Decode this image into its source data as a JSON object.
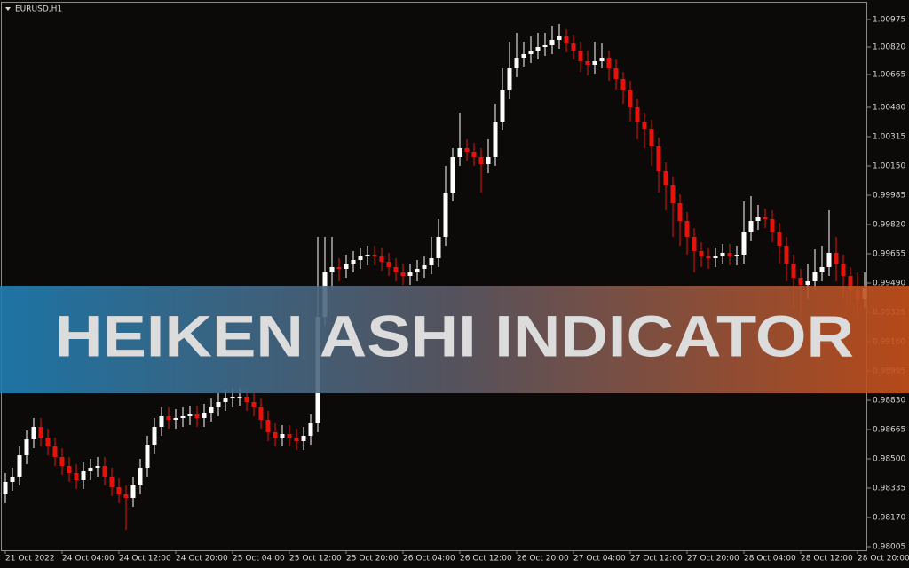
{
  "chart_data": {
    "type": "candlestick",
    "title": "EURUSD,H1",
    "banner": "HEIKEN ASHI INDICATOR",
    "x": [
      "21 Oct 2022",
      null,
      null,
      null,
      null,
      null,
      null,
      null,
      "24 Oct 04:00",
      null,
      null,
      null,
      null,
      null,
      null,
      null,
      "24 Oct 12:00",
      null,
      null,
      null,
      null,
      null,
      null,
      null,
      "24 Oct 20:00",
      null,
      null,
      null,
      null,
      null,
      null,
      null,
      "25 Oct 04:00",
      null,
      null,
      null,
      null,
      null,
      null,
      null,
      "25 Oct 12:00",
      null,
      null,
      null,
      null,
      null,
      null,
      null,
      "25 Oct 20:00",
      null,
      null,
      null,
      null,
      null,
      null,
      null,
      "26 Oct 04:00",
      null,
      null,
      null,
      null,
      null,
      null,
      null,
      "26 Oct 12:00",
      null,
      null,
      null,
      null,
      null,
      null,
      null,
      "26 Oct 20:00",
      null,
      null,
      null,
      null,
      null,
      null,
      null,
      "27 Oct 04:00",
      null,
      null,
      null,
      null,
      null,
      null,
      null,
      "27 Oct 12:00",
      null,
      null,
      null,
      null,
      null,
      null,
      null,
      "27 Oct 20:00",
      null,
      null,
      null,
      null,
      null,
      null,
      null,
      "28 Oct 04:00",
      null,
      null,
      null,
      null,
      null,
      null,
      null,
      "28 Oct 12:00",
      null,
      null,
      null,
      null,
      null,
      null,
      null,
      "28 Oct 20:00",
      null
    ],
    "open": [
      0.983,
      0.9837,
      0.984,
      0.9852,
      0.9861,
      0.9868,
      0.9862,
      0.9857,
      0.9851,
      0.9846,
      0.9842,
      0.9838,
      0.9843,
      0.9845,
      0.9846,
      0.984,
      0.9834,
      0.983,
      0.9828,
      0.9835,
      0.9845,
      0.9858,
      0.9868,
      0.9874,
      0.9872,
      0.9873,
      0.9874,
      0.9875,
      0.9873,
      0.9876,
      0.9879,
      0.9882,
      0.9884,
      0.9885,
      0.9885,
      0.9882,
      0.9879,
      0.9872,
      0.9865,
      0.9862,
      0.9864,
      0.9862,
      0.986,
      0.9863,
      0.987,
      0.993,
      0.9955,
      0.9958,
      0.9957,
      0.996,
      0.9962,
      0.9964,
      0.9965,
      0.9964,
      0.9961,
      0.9958,
      0.9955,
      0.9953,
      0.9955,
      0.9957,
      0.9959,
      0.9963,
      0.9975,
      1.0,
      1.002,
      1.0025,
      1.0023,
      1.002,
      1.0016,
      1.002,
      1.004,
      1.0058,
      1.007,
      1.0076,
      1.0078,
      1.008,
      1.0082,
      1.0083,
      1.0086,
      1.0088,
      1.0084,
      1.008,
      1.0074,
      1.0072,
      1.0074,
      1.0076,
      1.007,
      1.0064,
      1.0058,
      1.0048,
      1.004,
      1.0036,
      1.0026,
      1.0012,
      1.0004,
      0.9994,
      0.9984,
      0.9975,
      0.9967,
      0.9964,
      0.9963,
      0.9964,
      0.9966,
      0.9964,
      0.9965,
      0.9978,
      0.9984,
      0.9986,
      0.9985,
      0.9978,
      0.997,
      0.996,
      0.9952,
      0.9948,
      0.995,
      0.9955,
      0.9958,
      0.9966,
      0.996,
      0.9953,
      0.9945,
      0.994
    ],
    "high": [
      0.9842,
      0.9845,
      0.9857,
      0.9866,
      0.9873,
      0.9873,
      0.9867,
      0.9862,
      0.9856,
      0.9851,
      0.9847,
      0.9848,
      0.985,
      0.9851,
      0.9851,
      0.9845,
      0.9839,
      0.9835,
      0.984,
      0.985,
      0.9863,
      0.9873,
      0.9879,
      0.9879,
      0.9878,
      0.9879,
      0.988,
      0.988,
      0.9881,
      0.9884,
      0.9887,
      0.9889,
      0.989,
      0.989,
      0.989,
      0.9887,
      0.9884,
      0.9877,
      0.987,
      0.9869,
      0.9869,
      0.9867,
      0.9868,
      0.9875,
      0.9975,
      0.9975,
      0.9975,
      0.9963,
      0.9965,
      0.9967,
      0.9969,
      0.997,
      0.997,
      0.9969,
      0.9966,
      0.9963,
      0.996,
      0.996,
      0.9962,
      0.9964,
      0.9975,
      0.9985,
      1.0015,
      1.0025,
      1.0045,
      1.003,
      1.0028,
      1.0025,
      1.003,
      1.005,
      1.007,
      1.0085,
      1.009,
      1.0085,
      1.0088,
      1.009,
      1.009,
      1.0094,
      1.0095,
      1.0092,
      1.0089,
      1.0085,
      1.008,
      1.0085,
      1.0084,
      1.008,
      1.0075,
      1.0068,
      1.0063,
      1.0053,
      1.0045,
      1.0041,
      1.0031,
      1.0017,
      1.0009,
      0.9999,
      0.9989,
      0.998,
      0.9972,
      0.9969,
      0.9969,
      0.9971,
      0.9971,
      0.997,
      0.9995,
      0.9998,
      0.9993,
      0.9991,
      0.999,
      0.9983,
      0.9975,
      0.9965,
      0.9957,
      0.996,
      0.9968,
      0.997,
      0.999,
      0.9975,
      0.9965,
      0.9958,
      0.9955,
      0.9955
    ],
    "low": [
      0.9825,
      0.9832,
      0.9835,
      0.9847,
      0.9856,
      0.9857,
      0.9852,
      0.9846,
      0.9841,
      0.9837,
      0.9833,
      0.9833,
      0.9838,
      0.984,
      0.9835,
      0.9829,
      0.9825,
      0.981,
      0.9823,
      0.983,
      0.984,
      0.9853,
      0.9863,
      0.9867,
      0.9867,
      0.9868,
      0.9869,
      0.9868,
      0.9868,
      0.9871,
      0.9874,
      0.9877,
      0.9879,
      0.988,
      0.9877,
      0.9874,
      0.9867,
      0.986,
      0.9857,
      0.9857,
      0.9857,
      0.9855,
      0.9855,
      0.9858,
      0.9865,
      0.9925,
      0.9945,
      0.995,
      0.9952,
      0.9955,
      0.9957,
      0.9959,
      0.9959,
      0.9956,
      0.9953,
      0.995,
      0.9948,
      0.9948,
      0.995,
      0.9952,
      0.9954,
      0.9958,
      0.997,
      0.9995,
      1.0015,
      1.0018,
      1.0015,
      1.0,
      1.0011,
      1.0015,
      1.0035,
      1.0053,
      1.0065,
      1.0071,
      1.0073,
      1.0075,
      1.0077,
      1.0078,
      1.0081,
      1.0079,
      1.0075,
      1.0068,
      1.0066,
      1.0067,
      1.007,
      1.0063,
      1.0058,
      1.005,
      1.004,
      1.003,
      1.0025,
      1.0015,
      1.0,
      0.999,
      0.9975,
      0.997,
      0.9965,
      0.9955,
      0.9958,
      0.9957,
      0.9958,
      0.996,
      0.9959,
      0.9959,
      0.996,
      0.9973,
      0.9979,
      0.998,
      0.9972,
      0.996,
      0.995,
      0.9935,
      0.993,
      0.994,
      0.9945,
      0.995,
      0.9953,
      0.995,
      0.994,
      0.9935,
      0.993,
      0.9935
    ],
    "close": [
      0.9837,
      0.984,
      0.9852,
      0.9861,
      0.9868,
      0.9862,
      0.9857,
      0.9851,
      0.9846,
      0.9842,
      0.9838,
      0.9843,
      0.9845,
      0.9846,
      0.984,
      0.9834,
      0.983,
      0.9828,
      0.9835,
      0.9845,
      0.9858,
      0.9868,
      0.9874,
      0.9872,
      0.9873,
      0.9874,
      0.9875,
      0.9873,
      0.9876,
      0.9879,
      0.9882,
      0.9884,
      0.9885,
      0.9885,
      0.9882,
      0.9879,
      0.9872,
      0.9865,
      0.9862,
      0.9864,
      0.9862,
      0.986,
      0.9863,
      0.987,
      0.993,
      0.9955,
      0.9958,
      0.9957,
      0.996,
      0.9962,
      0.9964,
      0.9965,
      0.9964,
      0.9961,
      0.9958,
      0.9955,
      0.9953,
      0.9955,
      0.9957,
      0.9959,
      0.9963,
      0.9975,
      1.0,
      1.002,
      1.0025,
      1.0023,
      1.002,
      1.0016,
      1.002,
      1.004,
      1.0058,
      1.007,
      1.0076,
      1.0078,
      1.008,
      1.0082,
      1.0083,
      1.0086,
      1.0088,
      1.0084,
      1.008,
      1.0074,
      1.0072,
      1.0074,
      1.0076,
      1.007,
      1.0064,
      1.0058,
      1.0048,
      1.004,
      1.0036,
      1.0026,
      1.0012,
      1.0004,
      0.9994,
      0.9984,
      0.9975,
      0.9967,
      0.9964,
      0.9963,
      0.9964,
      0.9966,
      0.9964,
      0.9965,
      0.9978,
      0.9984,
      0.9986,
      0.9985,
      0.9978,
      0.997,
      0.996,
      0.9952,
      0.9948,
      0.995,
      0.9955,
      0.9958,
      0.9966,
      0.996,
      0.9953,
      0.9945,
      0.994,
      0.9946
    ],
    "up_color": "#ffffff",
    "down_color": "#e8120c",
    "ylim": [
      0.97985,
      1.0107
    ],
    "yticks": [
      {
        "value": 1.00975,
        "label": "1.00975"
      },
      {
        "value": 1.0082,
        "label": "1.00820"
      },
      {
        "value": 1.00665,
        "label": "1.00665"
      },
      {
        "value": 1.0048,
        "label": "1.00480"
      },
      {
        "value": 1.00315,
        "label": "1.00315"
      },
      {
        "value": 1.0015,
        "label": "1.00150"
      },
      {
        "value": 0.99985,
        "label": "0.99985"
      },
      {
        "value": 0.9982,
        "label": "0.99820"
      },
      {
        "value": 0.99655,
        "label": "0.99655"
      },
      {
        "value": 0.9949,
        "label": "0.99490"
      },
      {
        "value": 0.99325,
        "label": "0.99325"
      },
      {
        "value": 0.9916,
        "label": "0.99160"
      },
      {
        "value": 0.98995,
        "label": "0.98995"
      },
      {
        "value": 0.9883,
        "label": "0.98830"
      },
      {
        "value": 0.98665,
        "label": "0.98665"
      },
      {
        "value": 0.985,
        "label": "0.98500"
      },
      {
        "value": 0.98335,
        "label": "0.98335"
      },
      {
        "value": 0.9817,
        "label": "0.98170"
      },
      {
        "value": 0.98005,
        "label": "0.98005"
      }
    ]
  }
}
